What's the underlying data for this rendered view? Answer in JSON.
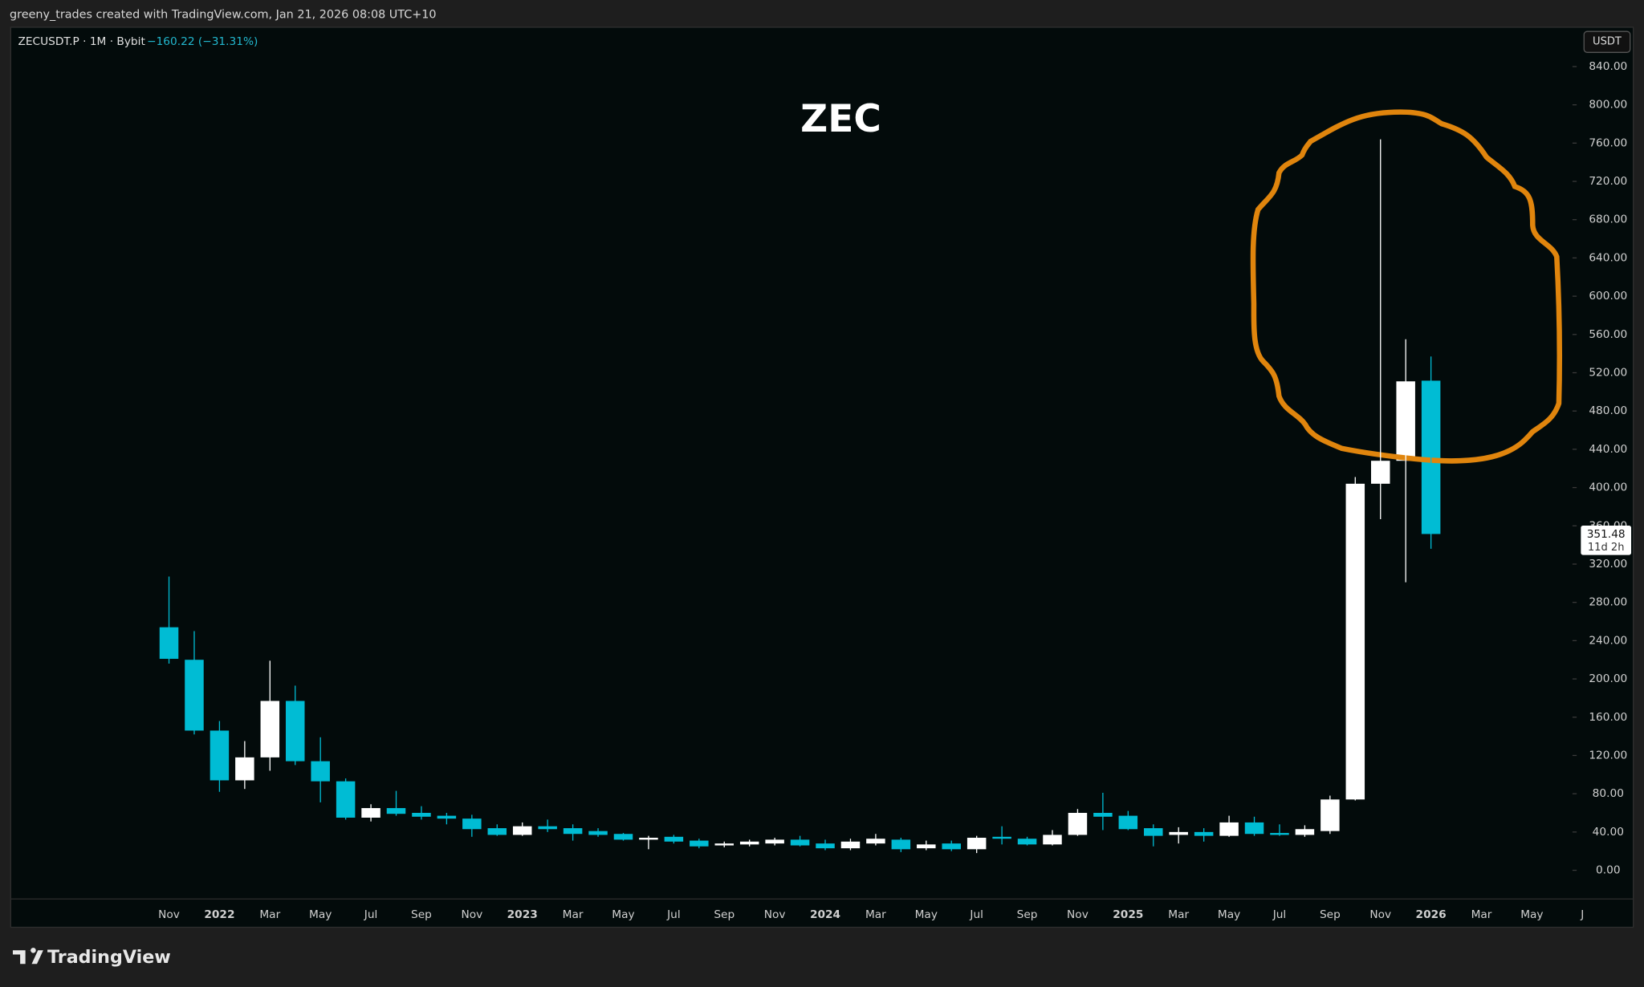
{
  "header": {
    "credit": "greeny_trades created with TradingView.com, Jan 21, 2026 08:08 UTC+10"
  },
  "footer": {
    "brand": "TradingView"
  },
  "chart_data": {
    "type": "candlestick",
    "title": "ZEC",
    "symbol": "ZECUSDT.P · 1M · Bybit",
    "change": "−160.22 (−31.31%)",
    "currency": "USDT",
    "countdown": "11d 2h",
    "up_color": "#ffffff",
    "down_color": "#00bcd4",
    "grid": false,
    "categories": [
      "Nov",
      null,
      "2022",
      null,
      "Mar",
      null,
      "May",
      null,
      "Jul",
      null,
      "Sep",
      null,
      "Nov",
      null,
      "2023",
      null,
      "Mar",
      null,
      "May",
      null,
      "Jul",
      null,
      "Sep",
      null,
      "Nov",
      null,
      "2024",
      null,
      "Mar",
      null,
      "May",
      null,
      "Jul",
      null,
      "Sep",
      null,
      "Nov",
      null,
      "2025",
      null,
      "Mar",
      null,
      "May",
      null,
      "Jul",
      null,
      "Sep",
      null,
      "Nov",
      null,
      "2026",
      null,
      "Mar",
      null,
      "May",
      null,
      "J"
    ],
    "open": [
      254,
      220,
      146,
      94,
      118,
      177,
      114,
      93,
      55,
      65,
      60,
      57,
      54,
      44,
      37,
      46,
      44,
      41,
      38,
      32,
      35,
      31,
      26,
      27,
      28,
      32,
      28,
      23,
      28,
      32,
      23,
      28,
      22,
      35,
      33,
      27,
      37,
      60,
      57,
      44,
      37,
      40,
      36,
      50,
      39,
      37,
      41,
      74,
      404,
      428,
      511.7,
      null,
      null,
      null,
      null,
      null,
      null
    ],
    "high": [
      307,
      250,
      156,
      135,
      219,
      193,
      139,
      96,
      69,
      83,
      67,
      60,
      58,
      48,
      50,
      53,
      48,
      44,
      39,
      36,
      37,
      33,
      30,
      32,
      34,
      36,
      32,
      33,
      38,
      34,
      31,
      31,
      36,
      46,
      35,
      42,
      64,
      81,
      62,
      48,
      45,
      44,
      57,
      56,
      48,
      47,
      78,
      411,
      764,
      555,
      537,
      null,
      null,
      null,
      null,
      null,
      null
    ],
    "low": [
      216,
      142,
      82,
      85,
      104,
      110,
      71,
      53,
      51,
      57,
      53,
      48,
      35,
      36,
      36,
      40,
      31,
      35,
      31,
      22,
      28,
      23,
      24,
      25,
      26,
      25,
      21,
      21,
      26,
      19,
      21,
      20,
      18,
      27,
      26,
      26,
      36,
      42,
      42,
      25,
      28,
      30,
      35,
      36,
      36,
      35,
      38,
      73,
      367,
      301,
      336,
      null,
      null,
      null,
      null,
      null,
      null
    ],
    "close": [
      221,
      146,
      94,
      118,
      177,
      114,
      93,
      55,
      65,
      59,
      56,
      54,
      43,
      37,
      46,
      43,
      38,
      37,
      32,
      34,
      30,
      25,
      28,
      30,
      32,
      26,
      23,
      30,
      33,
      22,
      27,
      22,
      34,
      33,
      27,
      37,
      60,
      56,
      43,
      36,
      40,
      36,
      50,
      38,
      37,
      43,
      74,
      404,
      428,
      511,
      351.48,
      null,
      null,
      null,
      null,
      null,
      null
    ],
    "ylim": [
      -30,
      880
    ],
    "yticks": [
      {
        "value": 0,
        "label": "0.00"
      },
      {
        "value": 40,
        "label": "40.00"
      },
      {
        "value": 80,
        "label": "80.00"
      },
      {
        "value": 120,
        "label": "120.00"
      },
      {
        "value": 160,
        "label": "160.00"
      },
      {
        "value": 200,
        "label": "200.00"
      },
      {
        "value": 240,
        "label": "240.00"
      },
      {
        "value": 280,
        "label": "280.00"
      },
      {
        "value": 320,
        "label": "320.00"
      },
      {
        "value": 360,
        "label": "360.00"
      },
      {
        "value": 400,
        "label": "400.00"
      },
      {
        "value": 440,
        "label": "440.00"
      },
      {
        "value": 480,
        "label": "480.00"
      },
      {
        "value": 520,
        "label": "520.00"
      },
      {
        "value": 560,
        "label": "560.00"
      },
      {
        "value": 600,
        "label": "600.00"
      },
      {
        "value": 640,
        "label": "640.00"
      },
      {
        "value": 680,
        "label": "680.00"
      },
      {
        "value": 720,
        "label": "720.00"
      },
      {
        "value": 760,
        "label": "760.00"
      },
      {
        "value": 800,
        "label": "800.00"
      },
      {
        "value": 840,
        "label": "840.00"
      }
    ]
  }
}
